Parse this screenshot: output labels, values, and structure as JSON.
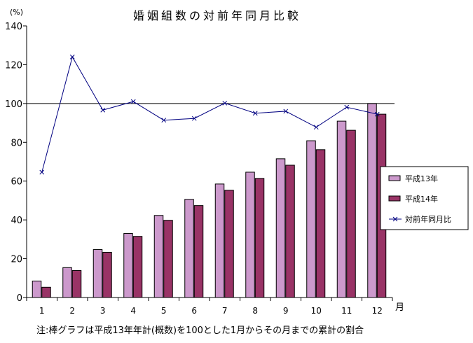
{
  "chart_data": {
    "type": "bar",
    "title": "婚姻組数の対前年同月比較",
    "ylabel": "(%)",
    "xlabel": "月",
    "ylim": [
      0,
      140
    ],
    "yticks": [
      0,
      20,
      40,
      60,
      80,
      100,
      120,
      140
    ],
    "categories": [
      "1",
      "2",
      "3",
      "4",
      "5",
      "6",
      "7",
      "8",
      "9",
      "10",
      "11",
      "12"
    ],
    "reference_line": 100,
    "series": [
      {
        "name": "平成13年",
        "type": "bar",
        "color": "#cc99cc",
        "values": [
          8.5,
          15.4,
          24.7,
          33.0,
          42.3,
          50.6,
          58.5,
          64.6,
          71.5,
          80.8,
          90.9,
          100
        ]
      },
      {
        "name": "平成14年",
        "type": "bar",
        "color": "#993366",
        "values": [
          5.3,
          13.9,
          23.3,
          31.5,
          39.8,
          47.4,
          55.3,
          61.4,
          68.2,
          76.2,
          86.2,
          94.5
        ]
      },
      {
        "name": "対前年同月比",
        "type": "line",
        "color": "#000080",
        "values": [
          64.6,
          124,
          96.6,
          101,
          91.4,
          92.3,
          100.2,
          95,
          96,
          87.8,
          98.1,
          94.5
        ]
      }
    ],
    "legend_position": "right",
    "note": "注:棒グラフは平成13年年計(概数)を100とした1月からその月までの累計の割合"
  }
}
